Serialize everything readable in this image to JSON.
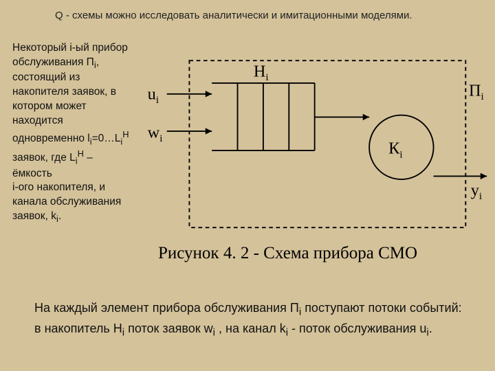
{
  "title": "Q - схемы можно исследовать аналитически и имитационными моделями.",
  "left_text": {
    "html": "Некоторый i-ый прибор обслуживания П<sub>i</sub>, состоящий из накопителя заявок, в котором может находится одновременно l<sub>i</sub>=0…L<sub>i</sub><sup>H</sup> заявок, где L<sub>i</sub><sup>H</sup> – ёмкость<br> i-ого накопителя, и канала обслуживания заявок, k<sub>i</sub>."
  },
  "diagram": {
    "u_label": "u",
    "u_sub": "i",
    "w_label": "w",
    "w_sub": "i",
    "H_label": "Н",
    "H_sub": "i",
    "P_label": "П",
    "P_sub": "i",
    "K_label": "К",
    "K_sub": "i",
    "y_label": "y",
    "y_sub": "i",
    "bg_color": "#d4c29a",
    "line_color": "#000000",
    "dashed_color": "#000000",
    "line_width": 2,
    "dash_pattern": "6,5",
    "label_fontsize": 26,
    "sub_fontsize": 16,
    "inner_fill": "#d4c29a"
  },
  "caption": "Рисунок 4. 2 - Схема прибора СМО",
  "bottom_text": {
    "html": "На каждый элемент прибора обслуживания П<sub>i</sub> поступают потоки событий: в накопитель Н<sub>i</sub> поток заявок w<sub>i</sub> , на канал k<sub>i</sub> - поток обслуживания u<sub>i</sub>."
  }
}
